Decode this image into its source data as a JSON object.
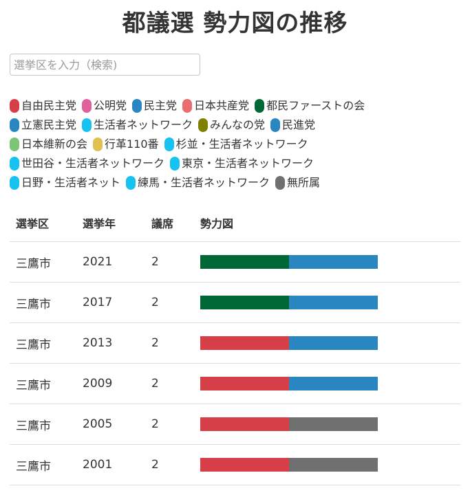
{
  "page": {
    "title": "都議選 勢力図の推移"
  },
  "search": {
    "placeholder": "選挙区を入力（検索)",
    "value": ""
  },
  "legend": {
    "rows": [
      [
        {
          "label": "自由民主党",
          "color": "#d63f48"
        },
        {
          "label": "公明党",
          "color": "#e0609c"
        },
        {
          "label": "民主党",
          "color": "#2a86c0"
        },
        {
          "label": "日本共産党",
          "color": "#ea6d6d"
        },
        {
          "label": "都民ファーストの会",
          "color": "#006837"
        }
      ],
      [
        {
          "label": "立憲民主党",
          "color": "#2a86c0"
        },
        {
          "label": "生活者ネットワーク",
          "color": "#17c1f0"
        },
        {
          "label": "みんなの党",
          "color": "#808000"
        },
        {
          "label": "民進党",
          "color": "#2a86c0"
        }
      ],
      [
        {
          "label": "日本維新の会",
          "color": "#7cc576"
        },
        {
          "label": "行革110番",
          "color": "#e0c050"
        },
        {
          "label": "杉並・生活者ネットワーク",
          "color": "#17c1f0"
        }
      ],
      [
        {
          "label": "世田谷・生活者ネットワーク",
          "color": "#17c1f0"
        },
        {
          "label": "東京・生活者ネットワーク",
          "color": "#17c1f0"
        }
      ],
      [
        {
          "label": "日野・生活者ネット",
          "color": "#17c1f0"
        },
        {
          "label": "練馬・生活者ネットワーク",
          "color": "#17c1f0"
        },
        {
          "label": "無所属",
          "color": "#707070"
        }
      ]
    ]
  },
  "table": {
    "headers": {
      "district": "選挙区",
      "year": "選挙年",
      "seats": "議席",
      "composition": "勢力図"
    },
    "rows": [
      {
        "district": "三鷹市",
        "year": "2021",
        "seats": "2",
        "composition": [
          {
            "party": "都民ファーストの会",
            "color": "#006837"
          },
          {
            "party": "立憲民主党",
            "color": "#2a86c0"
          }
        ]
      },
      {
        "district": "三鷹市",
        "year": "2017",
        "seats": "2",
        "composition": [
          {
            "party": "都民ファーストの会",
            "color": "#006837"
          },
          {
            "party": "民進党",
            "color": "#2a86c0"
          }
        ]
      },
      {
        "district": "三鷹市",
        "year": "2013",
        "seats": "2",
        "composition": [
          {
            "party": "自由民主党",
            "color": "#d63f48"
          },
          {
            "party": "民主党",
            "color": "#2a86c0"
          }
        ]
      },
      {
        "district": "三鷹市",
        "year": "2009",
        "seats": "2",
        "composition": [
          {
            "party": "自由民主党",
            "color": "#d63f48"
          },
          {
            "party": "民主党",
            "color": "#2a86c0"
          }
        ]
      },
      {
        "district": "三鷹市",
        "year": "2005",
        "seats": "2",
        "composition": [
          {
            "party": "自由民主党",
            "color": "#d63f48"
          },
          {
            "party": "無所属",
            "color": "#707070"
          }
        ]
      },
      {
        "district": "三鷹市",
        "year": "2001",
        "seats": "2",
        "composition": [
          {
            "party": "自由民主党",
            "color": "#d63f48"
          },
          {
            "party": "無所属",
            "color": "#707070"
          }
        ]
      }
    ]
  }
}
